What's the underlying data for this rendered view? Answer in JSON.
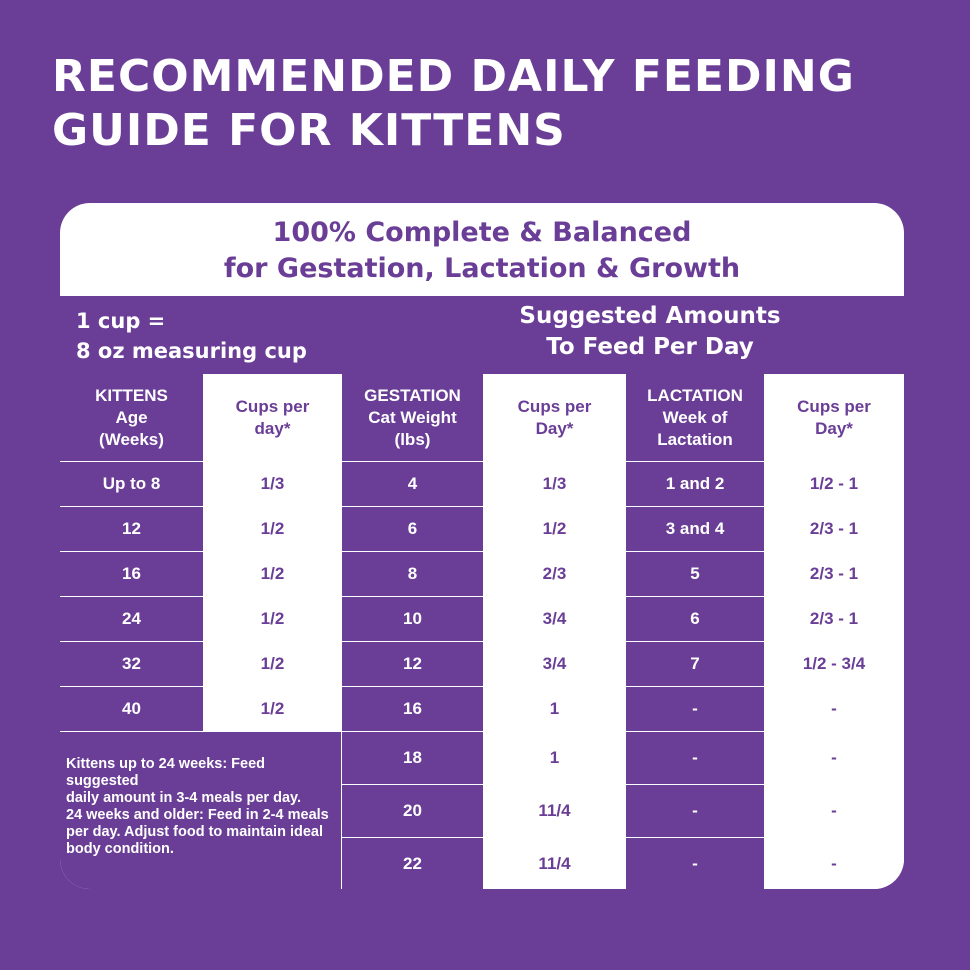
{
  "title": {
    "line1": "RECOMMENDED DAILY FEEDING",
    "line2": "GUIDE FOR KITTENS"
  },
  "card_header": {
    "line1": "100% Complete & Balanced",
    "line2": "for Gestation, Lactation & Growth"
  },
  "band": {
    "left_line1": "1 cup =",
    "left_line2": "8 oz measuring cup",
    "right_line1": "Suggested Amounts",
    "right_line2": "To Feed Per Day"
  },
  "columns": {
    "kittens": {
      "l1": "KITTENS",
      "l2": "Age",
      "l3": "(Weeks)"
    },
    "kittens_cups": {
      "l1": "Cups per",
      "l2": "day*"
    },
    "gestation": {
      "l1": "GESTATION",
      "l2": "Cat Weight",
      "l3": "(lbs)"
    },
    "gestation_cups": {
      "l1": "Cups per",
      "l2": "Day*"
    },
    "lactation": {
      "l1": "LACTATION",
      "l2": "Week of",
      "l3": "Lactation"
    },
    "lactation_cups": {
      "l1": "Cups per",
      "l2": "Day*"
    }
  },
  "kittens_rows": [
    {
      "age": "Up to 8",
      "cups": "1/3"
    },
    {
      "age": "12",
      "cups": "1/2"
    },
    {
      "age": "16",
      "cups": "1/2"
    },
    {
      "age": "24",
      "cups": "1/2"
    },
    {
      "age": "32",
      "cups": "1/2"
    },
    {
      "age": "40",
      "cups": "1/2"
    }
  ],
  "gestation_rows": [
    {
      "weight": "4",
      "cups": "1/3"
    },
    {
      "weight": "6",
      "cups": "1/2"
    },
    {
      "weight": "8",
      "cups": "2/3"
    },
    {
      "weight": "10",
      "cups": "3/4"
    },
    {
      "weight": "12",
      "cups": "3/4"
    },
    {
      "weight": "16",
      "cups": "1"
    },
    {
      "weight": "18",
      "cups": "1"
    },
    {
      "weight": "20",
      "cups": "11/4"
    },
    {
      "weight": "22",
      "cups": "11/4"
    }
  ],
  "lactation_rows": [
    {
      "week": "1 and 2",
      "cups": "1/2 - 1"
    },
    {
      "week": "3 and 4",
      "cups": "2/3 - 1"
    },
    {
      "week": "5",
      "cups": "2/3 - 1"
    },
    {
      "week": "6",
      "cups": "2/3 - 1"
    },
    {
      "week": "7",
      "cups": "1/2 - 3/4"
    },
    {
      "week": "-",
      "cups": "-"
    },
    {
      "week": "-",
      "cups": "-"
    },
    {
      "week": "-",
      "cups": "-"
    },
    {
      "week": "-",
      "cups": "-"
    }
  ],
  "note": {
    "l1": "Kittens up to 24 weeks: Feed suggested",
    "l2": "daily amount in 3-4 meals per day.",
    "l3": "24 weeks and older: Feed in 2-4 meals",
    "l4": "per day. Adjust food to maintain ideal",
    "l5": "body condition."
  },
  "colors": {
    "purple": "#6a3e96",
    "white": "#ffffff"
  }
}
